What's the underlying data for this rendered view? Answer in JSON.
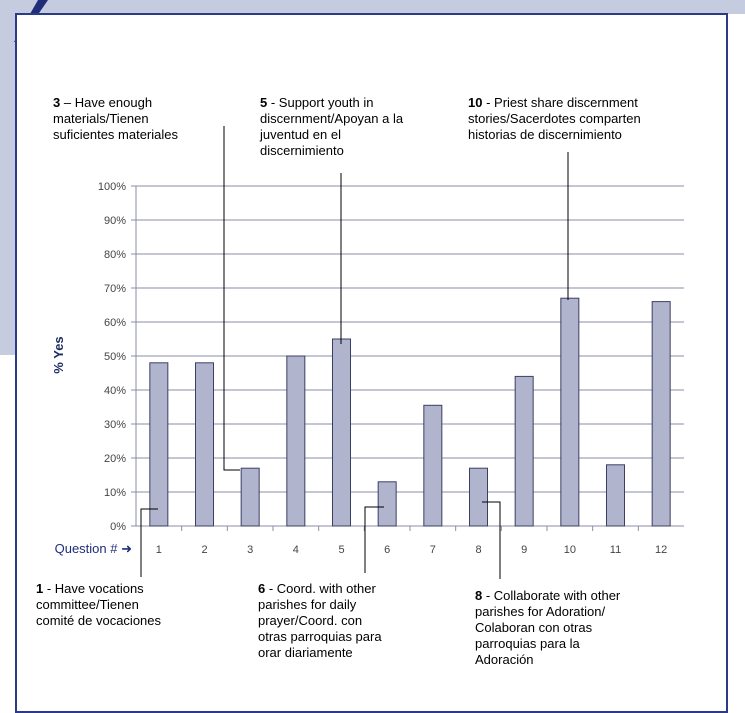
{
  "chart_data": {
    "type": "bar",
    "categories": [
      "1",
      "2",
      "3",
      "4",
      "5",
      "6",
      "7",
      "8",
      "9",
      "10",
      "11",
      "12"
    ],
    "values": [
      48,
      48,
      17,
      50,
      55,
      13,
      35.5,
      17,
      44,
      67,
      18,
      66
    ],
    "ylabel": "% Yes",
    "xlabel_prefix": "Question # ➜",
    "ylim": [
      0,
      100
    ],
    "yticks": [
      "0%",
      "10%",
      "20%",
      "30%",
      "40%",
      "50%",
      "60%",
      "70%",
      "80%",
      "90%",
      "100%"
    ],
    "grid": true,
    "bar_color": "#b1b4cd",
    "bar_stroke": "#3c3f63"
  },
  "annotations": [
    {
      "num": "3",
      "sep": " – ",
      "lines": [
        "Have enough",
        "materials/Tienen",
        "suficientes  materiales"
      ]
    },
    {
      "num": "5",
      "sep": " - ",
      "lines": [
        "Support youth in",
        "discernment/Apoyan a la",
        "juventud en el",
        "discernimiento"
      ]
    },
    {
      "num": "10",
      "sep": " - ",
      "lines": [
        "Priest share discernment",
        "stories/Sacerdotes comparten",
        "historias de discernimiento"
      ]
    },
    {
      "num": "1",
      "sep": " - ",
      "lines": [
        "Have vocations",
        "committee/Tienen",
        "comité de vocaciones"
      ]
    },
    {
      "num": "6",
      "sep": " - ",
      "lines": [
        "Coord.  with other",
        "parishes for daily",
        "prayer/Coord.  con",
        "otras parroquias para",
        "orar diariamente"
      ]
    },
    {
      "num": "8",
      "sep": " - ",
      "lines": [
        "Collaborate with other",
        "parishes for Adoration/",
        "Colaboran con otras",
        "parroquias para la",
        "Adoración"
      ]
    }
  ]
}
